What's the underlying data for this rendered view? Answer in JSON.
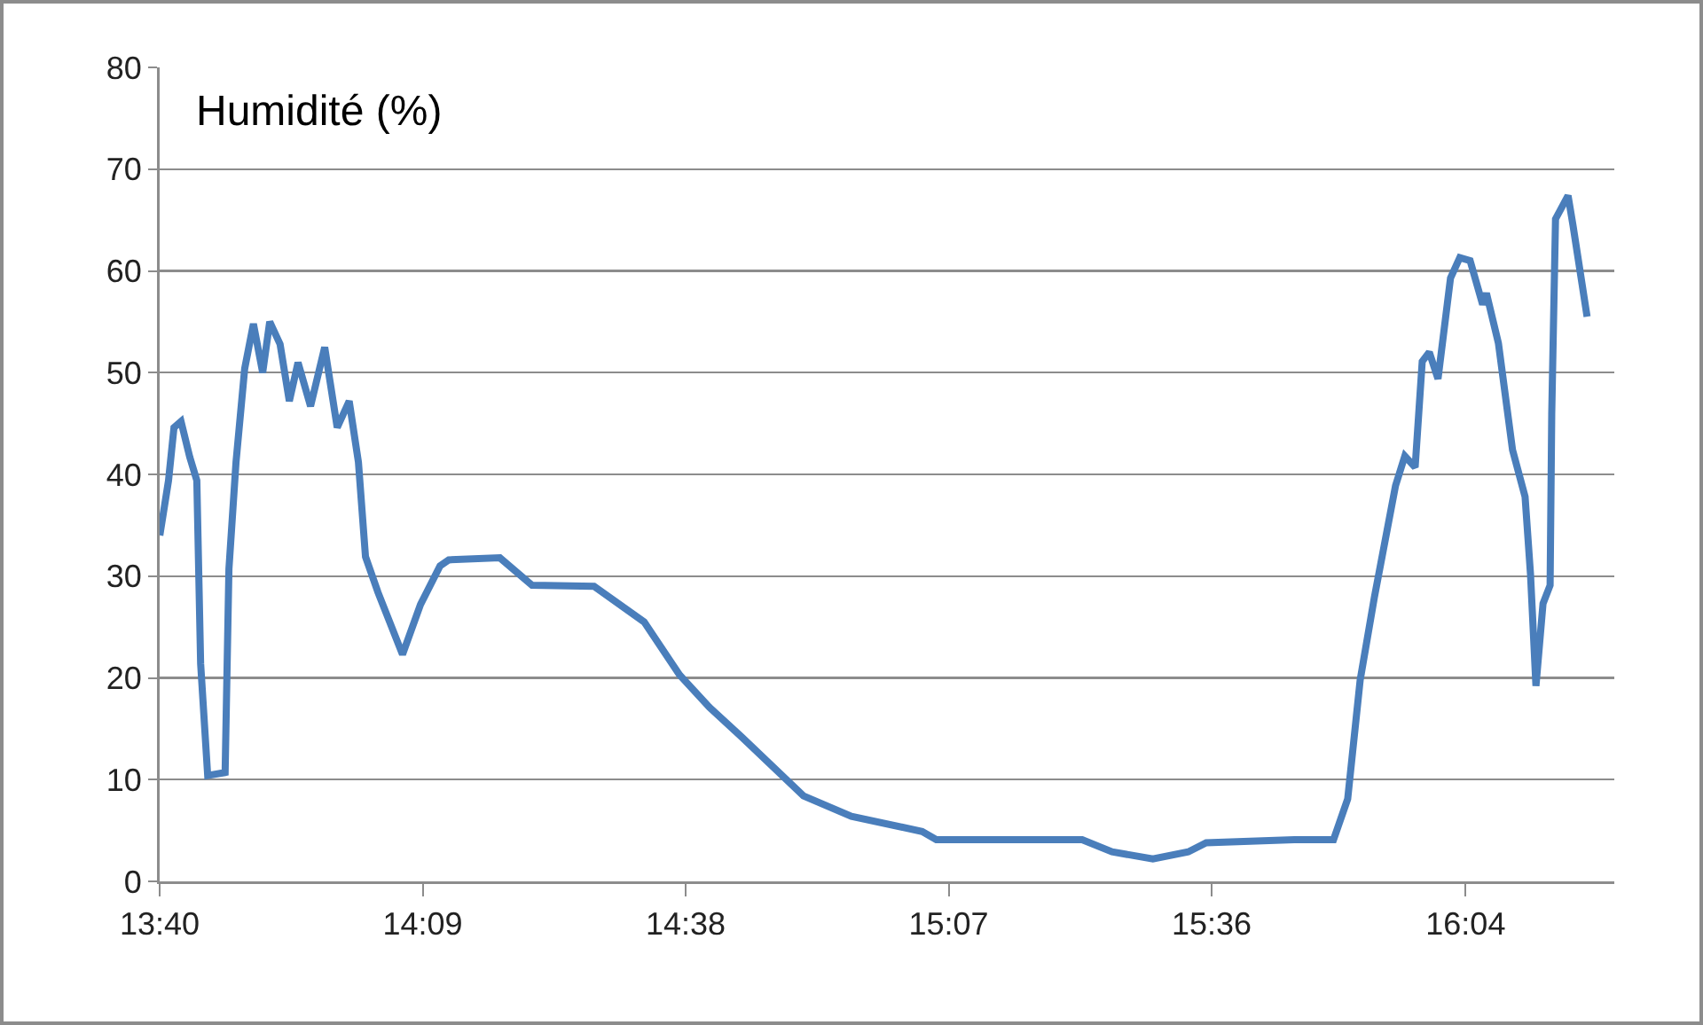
{
  "chart_data": {
    "type": "line",
    "title": "Humidité (%)",
    "x": [
      13.667,
      13.683,
      13.693,
      13.706,
      13.722,
      13.735,
      13.742,
      13.755,
      13.787,
      13.794,
      13.807,
      13.823,
      13.839,
      13.856,
      13.869,
      13.888,
      13.905,
      13.921,
      13.944,
      13.97,
      13.993,
      14.015,
      14.032,
      14.045,
      14.068,
      14.113,
      14.146,
      14.182,
      14.198,
      14.292,
      14.351,
      14.465,
      14.557,
      14.622,
      14.677,
      14.736,
      14.85,
      14.938,
      15.068,
      15.094,
      15.362,
      15.417,
      15.492,
      15.557,
      15.59,
      15.752,
      15.824,
      15.85,
      15.873,
      15.899,
      15.938,
      15.955,
      15.974,
      15.987,
      16.0,
      16.016,
      16.039,
      16.056,
      16.075,
      16.098,
      16.105,
      16.127,
      16.153,
      16.176,
      16.186,
      16.196,
      16.209,
      16.222,
      16.225,
      16.232,
      16.255,
      16.264,
      16.29
    ],
    "series": [
      {
        "color": "#4a7ebb",
        "values": [
          34,
          39.4,
          44.6,
          45.2,
          41.7,
          39.4,
          21.4,
          10.4,
          10.7,
          30.7,
          41.2,
          50.4,
          54.8,
          50,
          55,
          52.8,
          47.2,
          51,
          46.7,
          52.5,
          44.6,
          47.2,
          41.2,
          31.9,
          28.4,
          22.3,
          27.2,
          31,
          31.6,
          31.8,
          29.1,
          29,
          25.5,
          20.3,
          17.1,
          14.2,
          8.4,
          6.4,
          4.9,
          4.1,
          4.1,
          2.9,
          2.2,
          2.9,
          3.8,
          4.1,
          4.1,
          8.1,
          19.8,
          27.9,
          38.9,
          41.8,
          40.7,
          51.1,
          52,
          49.4,
          59.3,
          61.3,
          61,
          56.7,
          57.8,
          52.9,
          42.4,
          37.8,
          30.2,
          19.2,
          27.3,
          29.1,
          45.9,
          65.1,
          67.4,
          64.5,
          55.5
        ]
      }
    ],
    "xlim": [
      13.6667,
      16.34
    ],
    "xticks": [
      {
        "value": 13.6667,
        "label": "13:40"
      },
      {
        "value": 14.15,
        "label": "14:09"
      },
      {
        "value": 14.6333,
        "label": "14:38"
      },
      {
        "value": 15.1167,
        "label": "15:07"
      },
      {
        "value": 15.6,
        "label": "15:36"
      },
      {
        "value": 16.0667,
        "label": "16:04"
      }
    ],
    "ylim": [
      0,
      80
    ],
    "yticks": [
      0,
      10,
      20,
      30,
      40,
      50,
      60,
      70,
      80
    ],
    "grid": "y",
    "marker": "none",
    "line_style": "solid"
  }
}
